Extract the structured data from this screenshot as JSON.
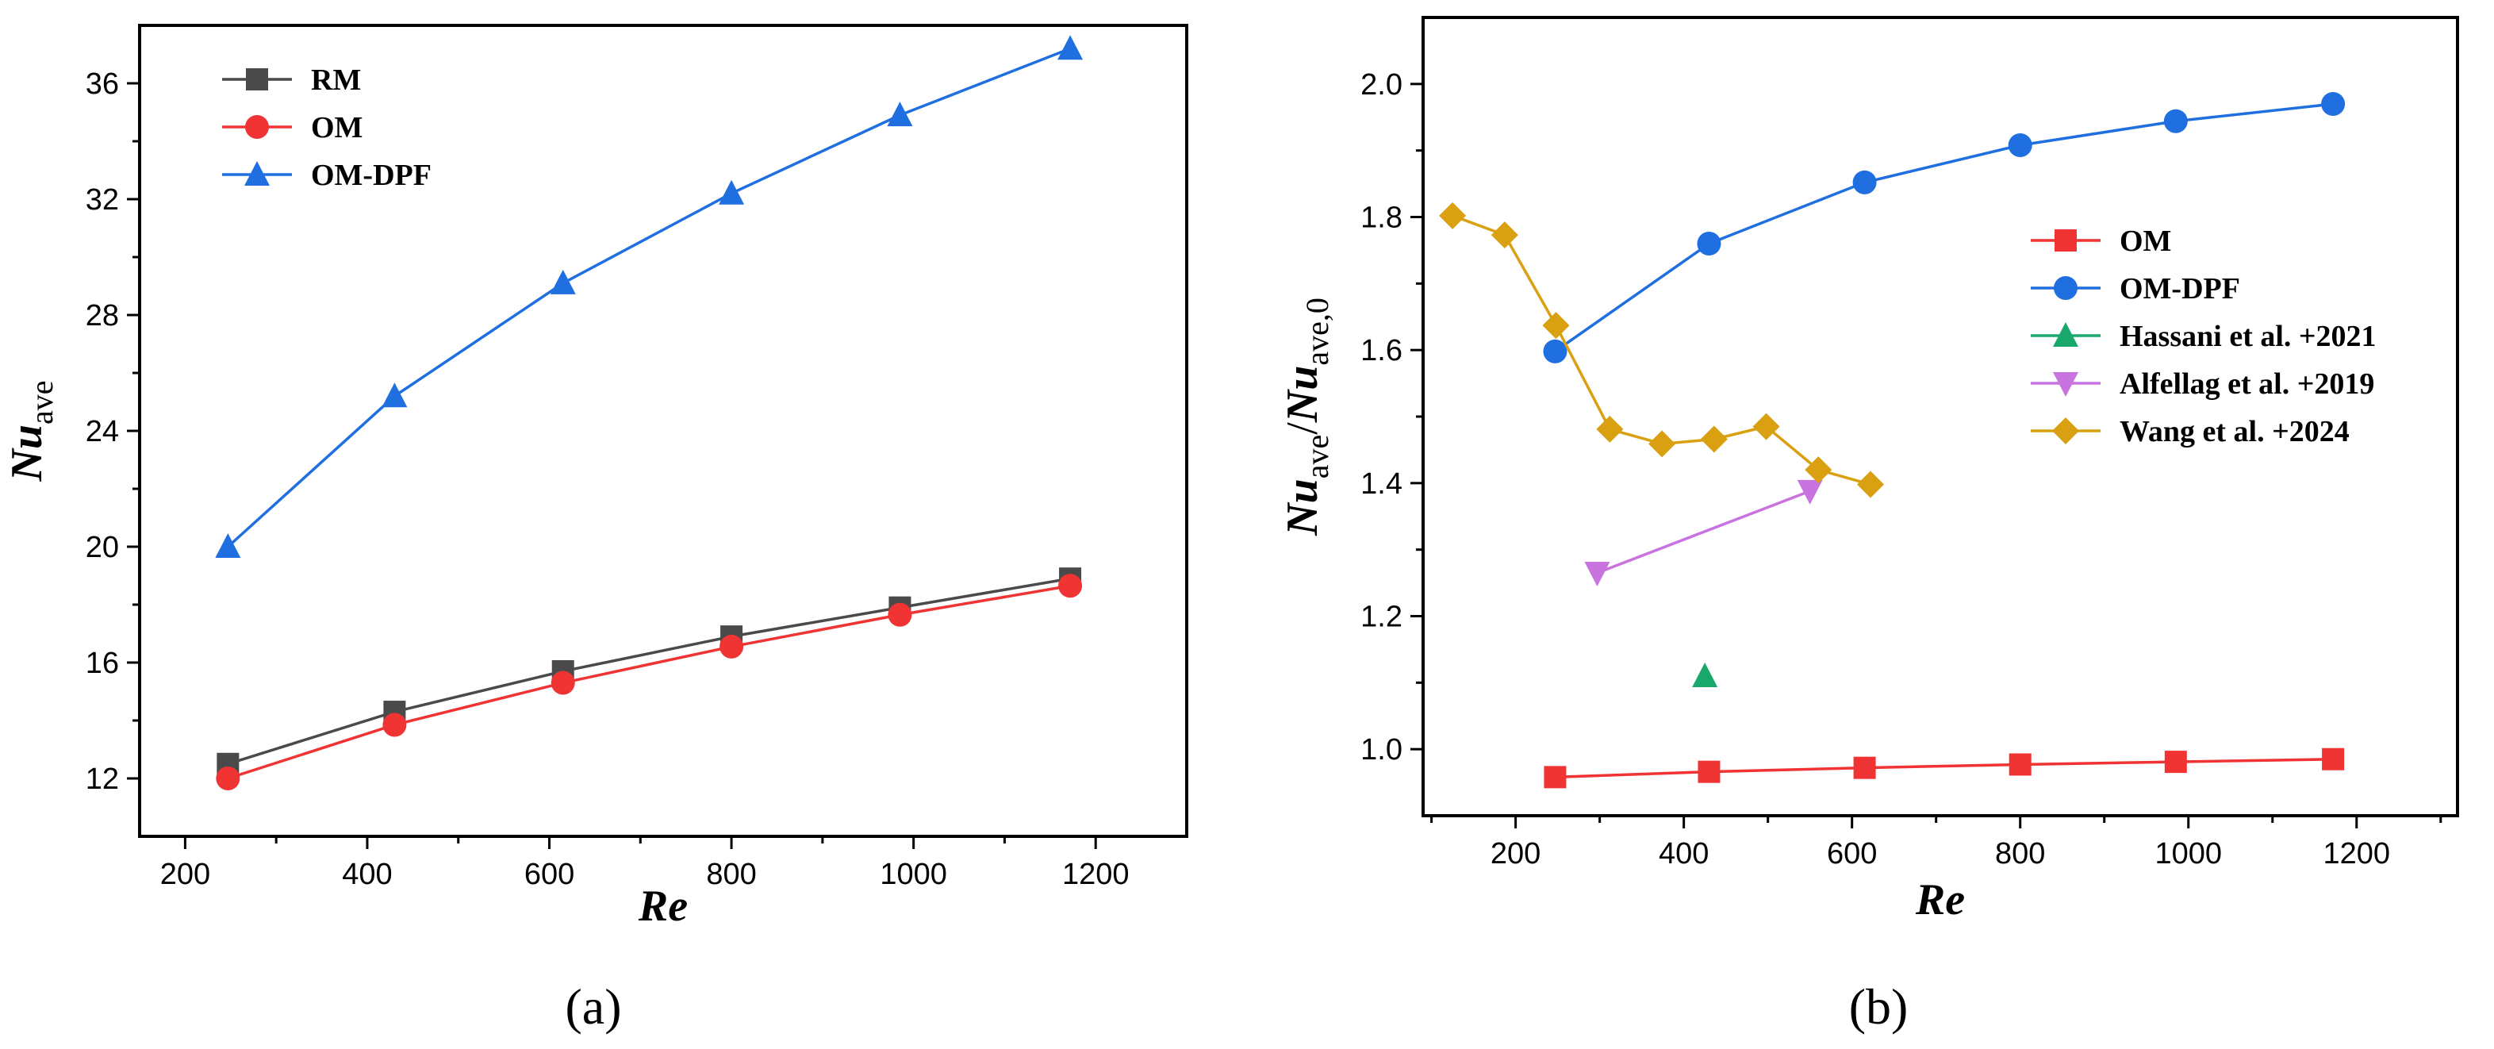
{
  "chart_data": [
    {
      "type": "line",
      "panel_label": "(a)",
      "xlabel": "Re",
      "ylabel": "Nu",
      "ylabel_sub": "ave",
      "xlim": [
        150,
        1300
      ],
      "ylim": [
        10,
        38
      ],
      "xticks": [
        200,
        400,
        600,
        800,
        1000,
        1200
      ],
      "yticks": [
        12,
        16,
        20,
        24,
        28,
        32,
        36
      ],
      "legend_position": "top-left",
      "series": [
        {
          "name": "RM",
          "color": "#4a4a4a",
          "marker": "square",
          "x": [
            247,
            430,
            615,
            800,
            985,
            1172
          ],
          "y": [
            12.5,
            14.3,
            15.7,
            16.9,
            17.9,
            18.9
          ]
        },
        {
          "name": "OM",
          "color": "#f03434",
          "marker": "circle",
          "x": [
            247,
            430,
            615,
            800,
            985,
            1172
          ],
          "y": [
            12.0,
            13.85,
            15.3,
            16.55,
            17.65,
            18.65
          ]
        },
        {
          "name": "OM-DPF",
          "color": "#1f6fe0",
          "marker": "triangle-up",
          "x": [
            247,
            430,
            615,
            800,
            985,
            1172
          ],
          "y": [
            20.0,
            25.2,
            29.1,
            32.2,
            34.9,
            37.2
          ]
        }
      ]
    },
    {
      "type": "line",
      "panel_label": "(b)",
      "xlabel": "Re",
      "ylabel": "Nu",
      "ylabel_sub": "ave",
      "ylabel_mid": "/",
      "ylabel_sub2": "ave,0",
      "xlim": [
        90,
        1320
      ],
      "ylim": [
        0.9,
        2.1
      ],
      "xticks": [
        200,
        400,
        600,
        800,
        1000,
        1200
      ],
      "yticks": [
        1.0,
        1.2,
        1.4,
        1.6,
        1.8,
        2.0
      ],
      "yticklabels": [
        "1.0",
        "1.2",
        "1.4",
        "1.6",
        "1.8",
        "2.0"
      ],
      "legend_position": "right",
      "series": [
        {
          "name": "OM",
          "color": "#f03434",
          "marker": "square",
          "x": [
            247,
            430,
            615,
            800,
            985,
            1172
          ],
          "y": [
            0.958,
            0.966,
            0.972,
            0.977,
            0.981,
            0.985
          ]
        },
        {
          "name": "OM-DPF",
          "color": "#1f6fe0",
          "marker": "circle",
          "x": [
            247,
            430,
            615,
            800,
            985,
            1172
          ],
          "y": [
            1.598,
            1.76,
            1.852,
            1.908,
            1.944,
            1.97
          ]
        },
        {
          "name": "Hassani et al. +2021",
          "color": "#18a86b",
          "marker": "triangle-up",
          "x": [
            425
          ],
          "y": [
            1.11
          ]
        },
        {
          "name": "Alfellag et al. +2019",
          "color": "#c873e0",
          "marker": "triangle-down",
          "x": [
            297,
            550
          ],
          "y": [
            1.265,
            1.388
          ]
        },
        {
          "name": "Wang et al. +2024",
          "color": "#d9a012",
          "marker": "diamond",
          "x": [
            125,
            187,
            248,
            312,
            374,
            436,
            498,
            560,
            622
          ],
          "y": [
            1.802,
            1.773,
            1.637,
            1.481,
            1.459,
            1.466,
            1.485,
            1.42,
            1.398
          ]
        }
      ]
    }
  ]
}
